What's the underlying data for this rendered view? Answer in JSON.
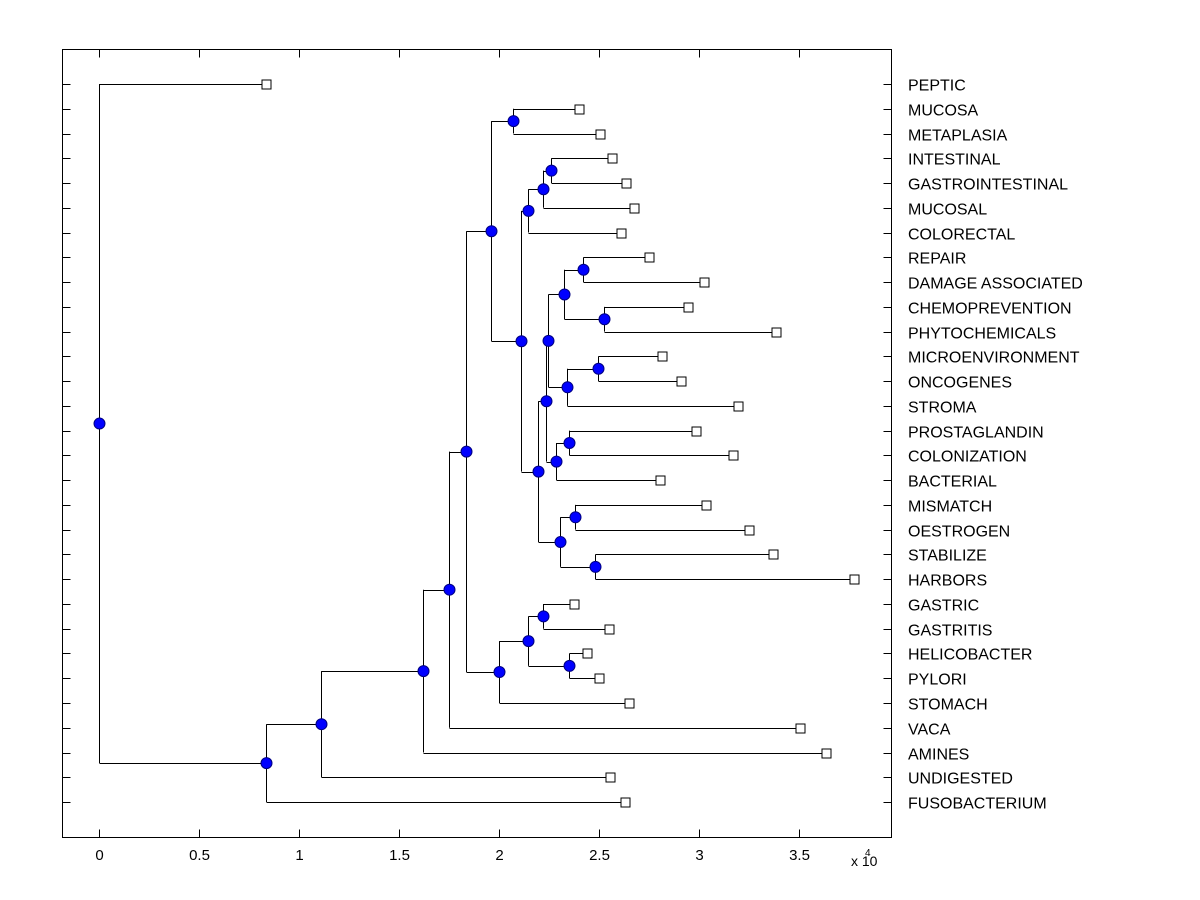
{
  "chart_data": {
    "type": "dendrogram",
    "title": "",
    "xlabel": "",
    "ylabel": "",
    "x_multiplier_label": "x 10",
    "x_multiplier_exponent": "4",
    "xlim": [
      -0.18,
      3.96
    ],
    "xticks": [
      0,
      0.5,
      1,
      1.5,
      2,
      2.5,
      3,
      3.5
    ],
    "xtick_labels": [
      "0",
      "0.5",
      "1",
      "1.5",
      "2",
      "2.5",
      "3",
      "3.5"
    ],
    "grid": false,
    "orientation": "root-left",
    "leaf_order": [
      "PEPTIC",
      "MUCOSA",
      "METAPLASIA",
      "INTESTINAL",
      "GASTROINTESTINAL",
      "MUCOSAL",
      "COLORECTAL",
      "REPAIR",
      "DAMAGE ASSOCIATED",
      "CHEMOPREVENTION",
      "PHYTOCHEMICALS",
      "MICROENVIRONMENT",
      "ONCOGENES",
      "STROMA",
      "PROSTAGLANDIN",
      "COLONIZATION",
      "BACTERIAL",
      "MISMATCH",
      "OESTROGEN",
      "STABILIZE",
      "HARBORS",
      "GASTRIC",
      "GASTRITIS",
      "HELICOBACTER",
      "PYLORI",
      "STOMACH",
      "VACA",
      "AMINES",
      "UNDIGESTED",
      "FUSOBACTERIUM"
    ],
    "tree": {
      "x": 0,
      "children": [
        {
          "leaf": "PEPTIC",
          "x": 0.835
        },
        {
          "x": 0.835,
          "children": [
            {
              "x": 1.11,
              "children": [
                {
                  "x": 1.62,
                  "children": [
                    {
                      "x": 1.75,
                      "children": [
                        {
                          "x": 1.835,
                          "children": [
                            {
                              "x": 1.96,
                              "children": [
                                {
                                  "x": 2.07,
                                  "children": [
                                    {
                                      "leaf": "MUCOSA",
                                      "x": 2.4
                                    },
                                    {
                                      "leaf": "METAPLASIA",
                                      "x": 2.505
                                    }
                                  ]
                                },
                                {
                                  "x": 2.11,
                                  "children": [
                                    {
                                      "x": 2.145,
                                      "children": [
                                        {
                                          "x": 2.22,
                                          "children": [
                                            {
                                              "x": 2.26,
                                              "children": [
                                                {
                                                  "leaf": "INTESTINAL",
                                                  "x": 2.565
                                                },
                                                {
                                                  "leaf": "GASTROINTESTINAL",
                                                  "x": 2.635
                                                }
                                              ]
                                            },
                                            {
                                              "leaf": "MUCOSAL",
                                              "x": 2.675
                                            }
                                          ]
                                        },
                                        {
                                          "leaf": "COLORECTAL",
                                          "x": 2.61
                                        }
                                      ]
                                    },
                                    {
                                      "x": 2.195,
                                      "children": [
                                        {
                                          "x": 2.235,
                                          "children": [
                                            {
                                              "x": 2.245,
                                              "children": [
                                                {
                                                  "x": 2.325,
                                                  "children": [
                                                    {
                                                      "x": 2.42,
                                                      "children": [
                                                        {
                                                          "leaf": "REPAIR",
                                                          "x": 2.75
                                                        },
                                                        {
                                                          "leaf": "DAMAGE ASSOCIATED",
                                                          "x": 3.025
                                                        }
                                                      ]
                                                    },
                                                    {
                                                      "x": 2.525,
                                                      "children": [
                                                        {
                                                          "leaf": "CHEMOPREVENTION",
                                                          "x": 2.945
                                                        },
                                                        {
                                                          "leaf": "PHYTOCHEMICALS",
                                                          "x": 3.385
                                                        }
                                                      ]
                                                    }
                                                  ]
                                                },
                                                {
                                                  "x": 2.34,
                                                  "children": [
                                                    {
                                                      "x": 2.495,
                                                      "children": [
                                                        {
                                                          "leaf": "MICROENVIRONMENT",
                                                          "x": 2.815
                                                        },
                                                        {
                                                          "leaf": "ONCOGENES",
                                                          "x": 2.91
                                                        }
                                                      ]
                                                    },
                                                    {
                                                      "leaf": "STROMA",
                                                      "x": 3.195
                                                    }
                                                  ]
                                                }
                                              ]
                                            },
                                            {
                                              "x": 2.285,
                                              "children": [
                                                {
                                                  "x": 2.35,
                                                  "children": [
                                                    {
                                                      "leaf": "PROSTAGLANDIN",
                                                      "x": 2.985
                                                    },
                                                    {
                                                      "leaf": "COLONIZATION",
                                                      "x": 3.17
                                                    }
                                                  ]
                                                },
                                                {
                                                  "leaf": "BACTERIAL",
                                                  "x": 2.805
                                                }
                                              ]
                                            }
                                          ]
                                        },
                                        {
                                          "x": 2.305,
                                          "children": [
                                            {
                                              "x": 2.38,
                                              "children": [
                                                {
                                                  "leaf": "MISMATCH",
                                                  "x": 3.035
                                                },
                                                {
                                                  "leaf": "OESTROGEN",
                                                  "x": 3.25
                                                }
                                              ]
                                            },
                                            {
                                              "x": 2.48,
                                              "children": [
                                                {
                                                  "leaf": "STABILIZE",
                                                  "x": 3.37
                                                },
                                                {
                                                  "leaf": "HARBORS",
                                                  "x": 3.775
                                                }
                                              ]
                                            }
                                          ]
                                        }
                                      ]
                                    }
                                  ]
                                }
                              ]
                            },
                            {
                              "x": 2.0,
                              "children": [
                                {
                                  "x": 2.145,
                                  "children": [
                                    {
                                      "x": 2.22,
                                      "children": [
                                        {
                                          "leaf": "GASTRIC",
                                          "x": 2.375
                                        },
                                        {
                                          "leaf": "GASTRITIS",
                                          "x": 2.55
                                        }
                                      ]
                                    },
                                    {
                                      "x": 2.35,
                                      "children": [
                                        {
                                          "leaf": "HELICOBACTER",
                                          "x": 2.44
                                        },
                                        {
                                          "leaf": "PYLORI",
                                          "x": 2.5
                                        }
                                      ]
                                    }
                                  ]
                                },
                                {
                                  "leaf": "STOMACH",
                                  "x": 2.65
                                }
                              ]
                            }
                          ]
                        },
                        {
                          "leaf": "VACA",
                          "x": 3.505
                        }
                      ]
                    },
                    {
                      "leaf": "AMINES",
                      "x": 3.635
                    }
                  ]
                },
                {
                  "leaf": "UNDIGESTED",
                  "x": 2.555
                }
              ]
            },
            {
              "leaf": "FUSOBACTERIUM",
              "x": 2.63
            }
          ]
        }
      ]
    },
    "colors": {
      "node_fill": "#0000ff",
      "node_stroke": "#000080",
      "line": "#000000",
      "leaf_fill": "#ffffff",
      "leaf_stroke": "#000000"
    }
  }
}
